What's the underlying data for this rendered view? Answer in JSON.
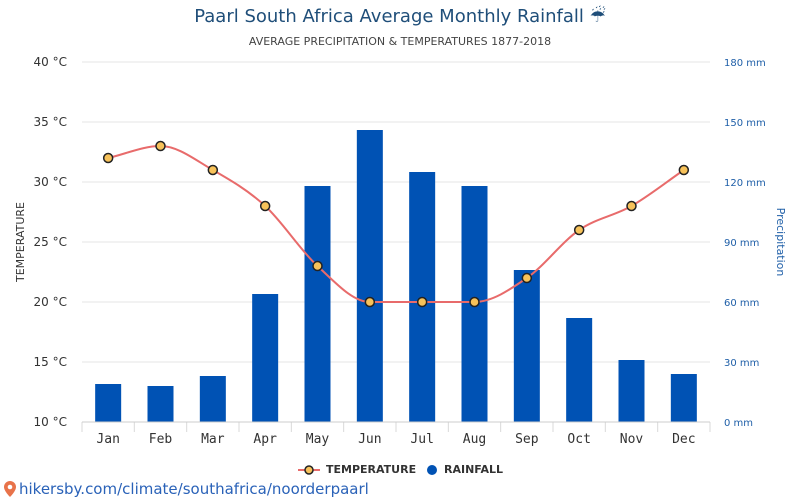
{
  "title": "Paarl South Africa Average Monthly Rainfall",
  "title_icon": "umbrella-rain-icon",
  "subtitle": "AVERAGE PRECIPITATION & TEMPERATURES 1877-2018",
  "source": "hikersby.com/climate/southafrica/noorderpaarl",
  "legend": {
    "temperature": "TEMPERATURE",
    "rainfall": "RAINFALL"
  },
  "colors": {
    "bar": "#0052b4",
    "line": "#e86b6b",
    "marker_fill": "#f7c25a",
    "marker_stroke": "#222222",
    "right_axis": "#1f5fa8",
    "title": "#1f4e79"
  },
  "chart_data": {
    "type": "bar",
    "categories": [
      "Jan",
      "Feb",
      "Mar",
      "Apr",
      "May",
      "Jun",
      "Jul",
      "Aug",
      "Sep",
      "Oct",
      "Nov",
      "Dec"
    ],
    "series": [
      {
        "name": "RAINFALL",
        "type": "bar",
        "axis": "right",
        "unit": "mm",
        "values": [
          19,
          18,
          23,
          64,
          118,
          146,
          125,
          118,
          76,
          52,
          31,
          24
        ]
      },
      {
        "name": "TEMPERATURE",
        "type": "line",
        "axis": "left",
        "unit": "°C",
        "values": [
          32,
          33,
          31,
          28,
          23,
          20,
          20,
          20,
          22,
          26,
          28,
          31
        ]
      }
    ],
    "ylabel_left": "TEMPERATURE",
    "ylabel_right": "Precipitation",
    "ylim_left": [
      10,
      40
    ],
    "ylim_right": [
      0,
      180
    ],
    "yticks_left": [
      "10 °C",
      "15 °C",
      "20 °C",
      "25 °C",
      "30 °C",
      "35 °C",
      "40 °C"
    ],
    "yticks_right": [
      "0 mm",
      "30 mm",
      "60 mm",
      "90 mm",
      "120 mm",
      "150 mm",
      "180 mm"
    ],
    "grid": true,
    "legend_position": "bottom-center"
  }
}
